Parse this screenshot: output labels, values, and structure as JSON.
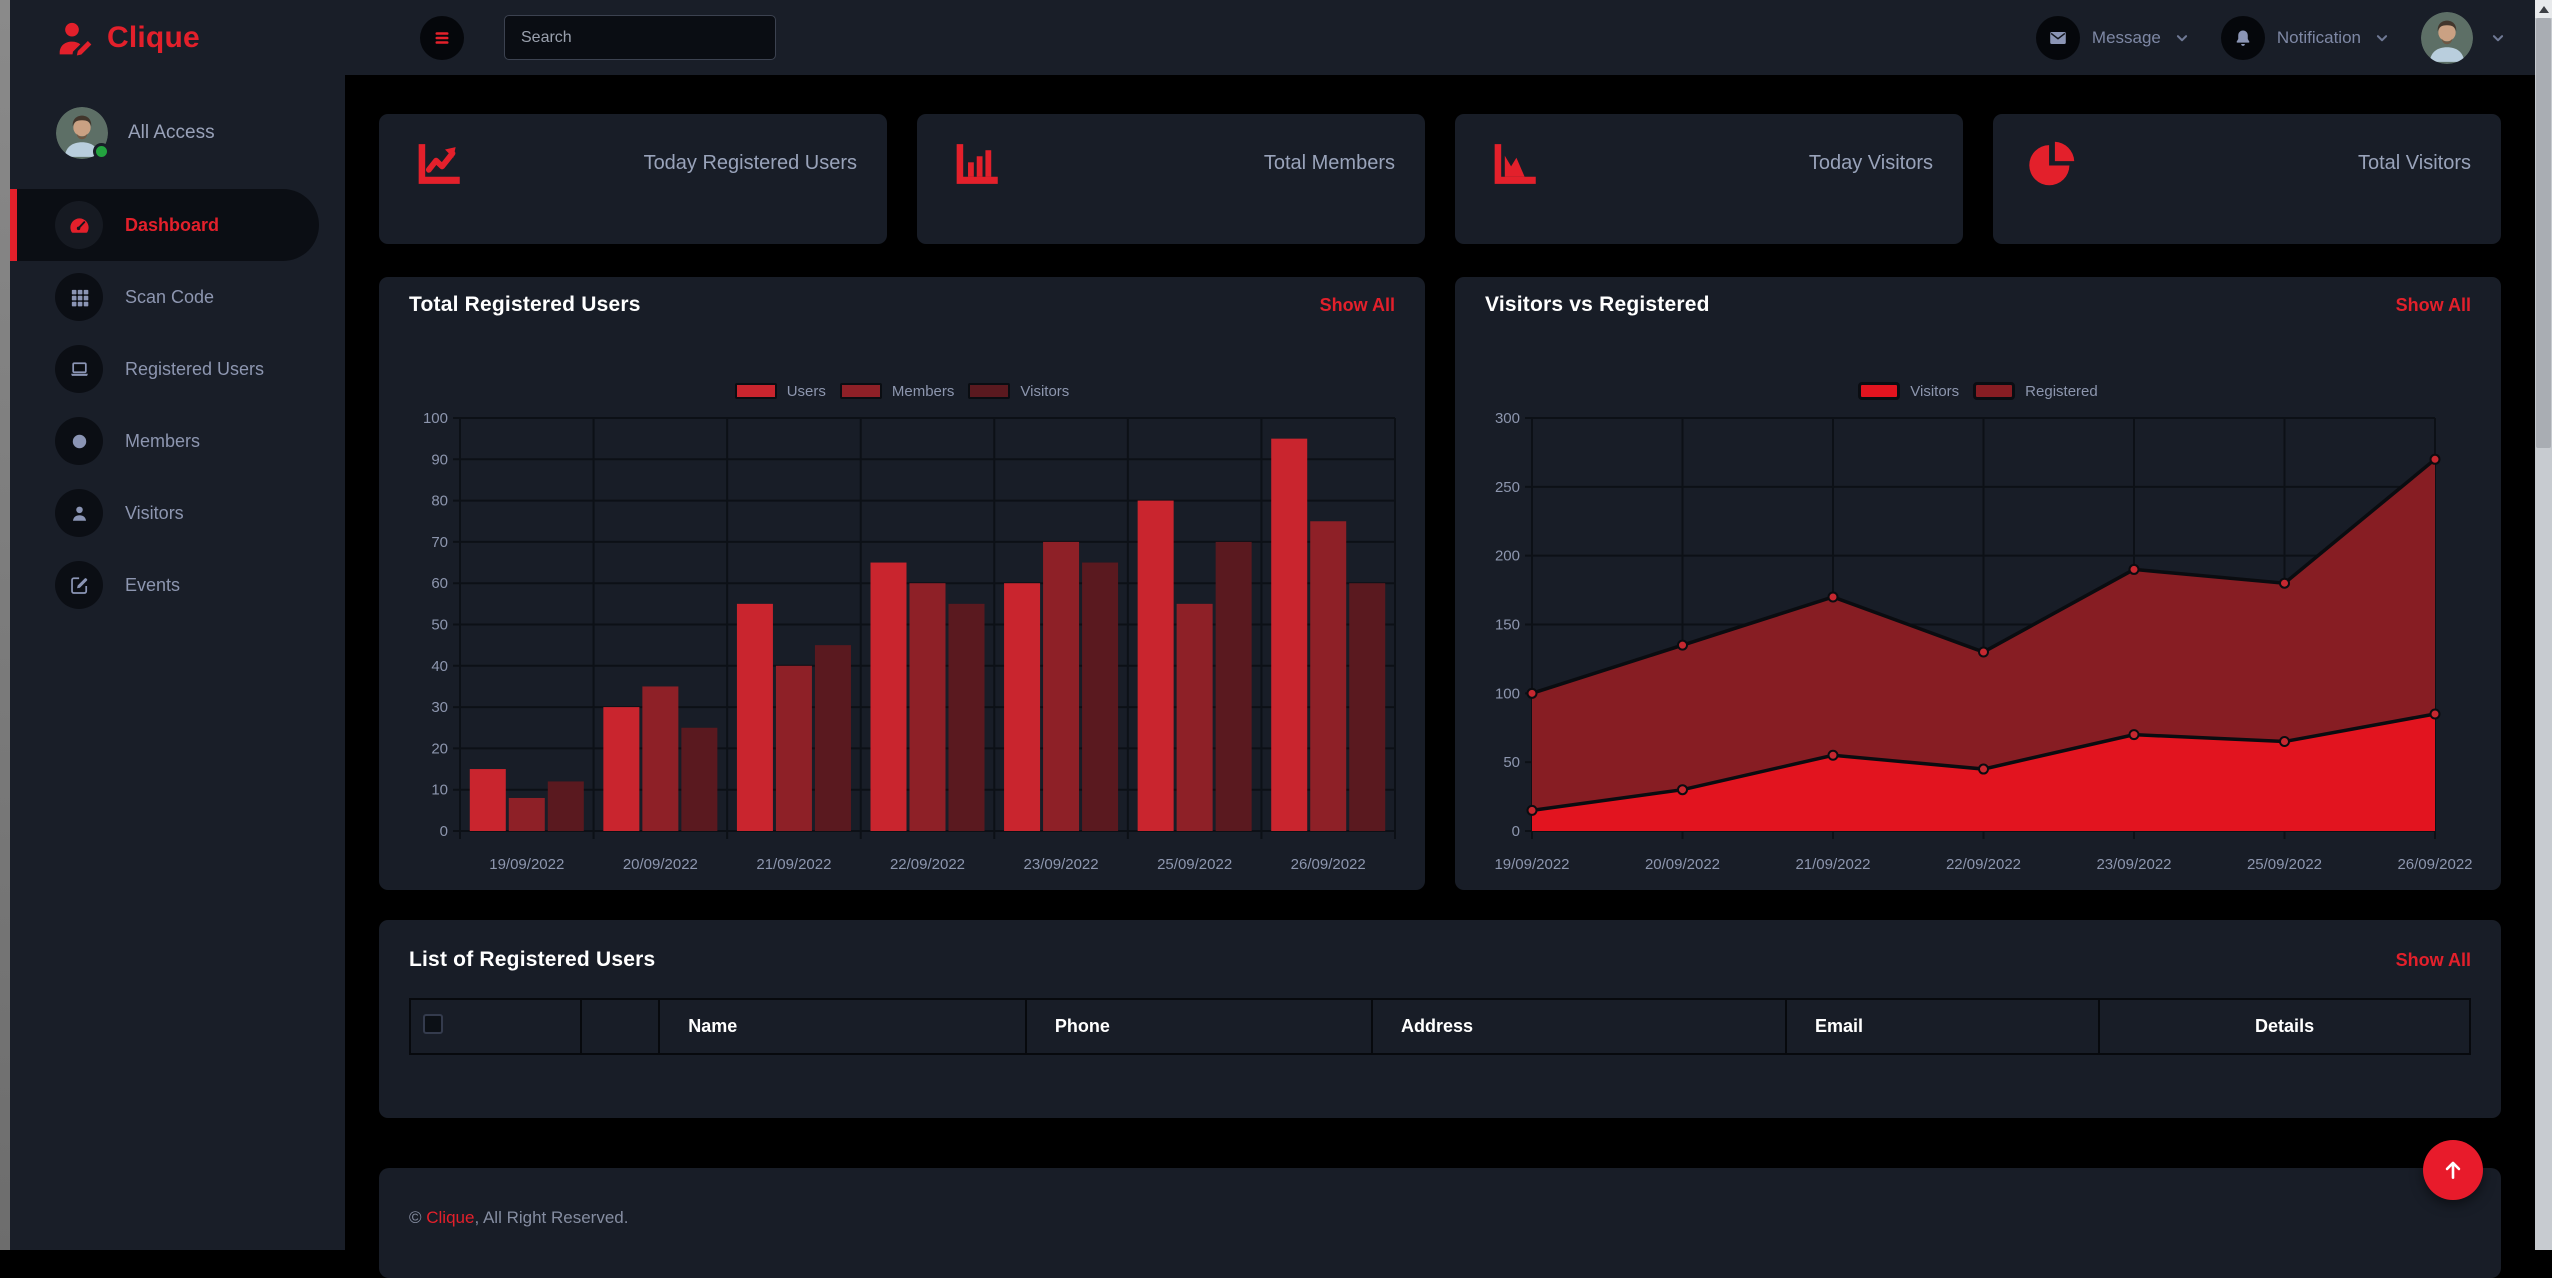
{
  "header": {
    "brand": "Clique",
    "search_placeholder": "Search",
    "message_label": "Message",
    "notification_label": "Notification"
  },
  "sidebar": {
    "profile_label": "All Access",
    "items": [
      {
        "label": "Dashboard",
        "icon": "gauge",
        "active": true
      },
      {
        "label": "Scan Code",
        "icon": "grid",
        "active": false
      },
      {
        "label": "Registered Users",
        "icon": "laptop",
        "active": false
      },
      {
        "label": "Members",
        "icon": "dot",
        "active": false
      },
      {
        "label": "Visitors",
        "icon": "person",
        "active": false
      },
      {
        "label": "Events",
        "icon": "edit",
        "active": false
      }
    ]
  },
  "stats": [
    {
      "label": "Today Registered Users",
      "icon": "line-chart"
    },
    {
      "label": "Total Members",
      "icon": "bar-chart"
    },
    {
      "label": "Today Visitors",
      "icon": "area-chart"
    },
    {
      "label": "Total Visitors",
      "icon": "pie-chart"
    }
  ],
  "chart_data": [
    {
      "type": "bar",
      "title": "Total Registered Users",
      "show_all_label": "Show All",
      "categories": [
        "19/09/2022",
        "20/09/2022",
        "21/09/2022",
        "22/09/2022",
        "23/09/2022",
        "25/09/2022",
        "26/09/2022"
      ],
      "series": [
        {
          "name": "Users",
          "color": "#c9252e",
          "values": [
            15,
            30,
            55,
            65,
            60,
            80,
            95
          ]
        },
        {
          "name": "Members",
          "color": "#8e2027",
          "values": [
            8,
            35,
            40,
            60,
            70,
            55,
            75
          ]
        },
        {
          "name": "Visitors",
          "color": "#5a191f",
          "values": [
            12,
            25,
            45,
            55,
            65,
            70,
            60
          ]
        }
      ],
      "ylim": [
        0,
        100
      ],
      "yticks": [
        0,
        10,
        20,
        30,
        40,
        50,
        60,
        70,
        80,
        90,
        100
      ],
      "grid": true,
      "legend_position": "top"
    },
    {
      "type": "area",
      "title": "Visitors vs Registered",
      "show_all_label": "Show All",
      "categories": [
        "19/09/2022",
        "20/09/2022",
        "21/09/2022",
        "22/09/2022",
        "23/09/2022",
        "25/09/2022",
        "26/09/2022"
      ],
      "series": [
        {
          "name": "Visitors",
          "color": "#e2141f",
          "line_color": "#0a0c10",
          "marker_color": "#c62830",
          "values": [
            15,
            30,
            55,
            45,
            70,
            65,
            85
          ]
        },
        {
          "name": "Registered",
          "color": "#871d23",
          "line_color": "#0a0c10",
          "marker_color": "#c62830",
          "values": [
            100,
            135,
            170,
            130,
            190,
            180,
            270
          ]
        }
      ],
      "ylim": [
        0,
        300
      ],
      "yticks": [
        0,
        50,
        100,
        150,
        200,
        250,
        300
      ],
      "grid": true,
      "legend_position": "top"
    }
  ],
  "table": {
    "title": "List of Registered Users",
    "show_all_label": "Show All",
    "columns": [
      "",
      "",
      "Name",
      "Phone",
      "Address",
      "Email",
      "Details"
    ],
    "column_widths_pct": [
      8.3,
      3.8,
      17.8,
      16.8,
      20.1,
      15.2,
      18.0
    ],
    "rows": []
  },
  "footer": {
    "prefix": "© ",
    "brand": "Clique",
    "suffix": ", All Right Reserved."
  },
  "colors": {
    "accent": "#e3202b",
    "panel": "#191e28",
    "card": "#181d27",
    "background": "#000000",
    "muted_text": "#8d96ae",
    "online_status": "#23a33f"
  }
}
